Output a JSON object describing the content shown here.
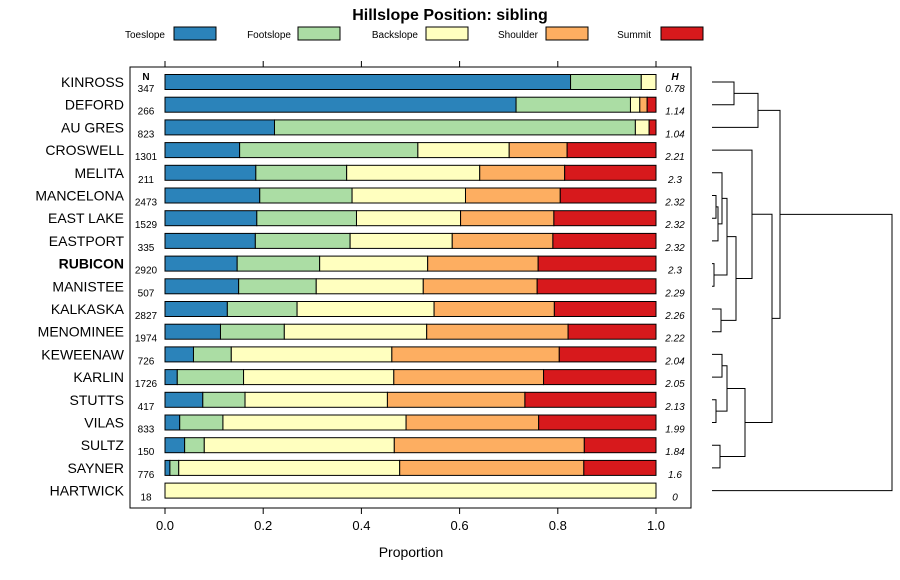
{
  "chart_data": {
    "type": "bar",
    "orientation": "horizontal",
    "stacked": true,
    "title": "Hillslope Position: sibling",
    "xlabel": "Proportion",
    "ylabel": "",
    "xlim": [
      0,
      1
    ],
    "x_ticks": [
      "0.0",
      "0.2",
      "0.4",
      "0.6",
      "0.8",
      "1.0"
    ],
    "n_header": "N",
    "h_header": "H",
    "highlight_category": "RUBICON",
    "legend": [
      {
        "name": "Toeslope",
        "color": "#2b83ba"
      },
      {
        "name": "Footslope",
        "color": "#abdda4"
      },
      {
        "name": "Backslope",
        "color": "#ffffbf"
      },
      {
        "name": "Shoulder",
        "color": "#fdae61"
      },
      {
        "name": "Summit",
        "color": "#d7191c"
      }
    ],
    "categories": [
      "KINROSS",
      "DEFORD",
      "AU GRES",
      "CROSWELL",
      "MELITA",
      "MANCELONA",
      "EAST LAKE",
      "EASTPORT",
      "RUBICON",
      "MANISTEE",
      "KALKASKA",
      "MENOMINEE",
      "KEWEENAW",
      "KARLIN",
      "STUTTS",
      "VILAS",
      "SULTZ",
      "SAYNER",
      "HARTWICK"
    ],
    "n": [
      "347",
      "266",
      "823",
      "1301",
      "211",
      "2473",
      "1529",
      "335",
      "2920",
      "507",
      "2827",
      "1974",
      "726",
      "1726",
      "417",
      "833",
      "150",
      "776",
      "18"
    ],
    "h": [
      "0.78",
      "1.14",
      "1.04",
      "2.21",
      "2.3",
      "2.32",
      "2.32",
      "2.32",
      "2.3",
      "2.29",
      "2.26",
      "2.22",
      "2.04",
      "2.05",
      "2.13",
      "1.99",
      "1.84",
      "1.6",
      "0"
    ],
    "series": [
      {
        "name": "Toeslope",
        "values": [
          0.826,
          0.715,
          0.223,
          0.152,
          0.185,
          0.193,
          0.187,
          0.184,
          0.147,
          0.15,
          0.127,
          0.113,
          0.058,
          0.025,
          0.077,
          0.03,
          0.04,
          0.01,
          0.0
        ]
      },
      {
        "name": "Footslope",
        "values": [
          0.144,
          0.233,
          0.735,
          0.363,
          0.185,
          0.188,
          0.203,
          0.193,
          0.168,
          0.158,
          0.142,
          0.13,
          0.077,
          0.135,
          0.086,
          0.088,
          0.04,
          0.018,
          0.0
        ]
      },
      {
        "name": "Backslope",
        "values": [
          0.03,
          0.019,
          0.028,
          0.186,
          0.271,
          0.231,
          0.212,
          0.208,
          0.22,
          0.218,
          0.279,
          0.29,
          0.327,
          0.306,
          0.29,
          0.373,
          0.387,
          0.45,
          1.0
        ]
      },
      {
        "name": "Shoulder",
        "values": [
          0.0,
          0.015,
          0.0,
          0.118,
          0.173,
          0.193,
          0.19,
          0.205,
          0.225,
          0.232,
          0.245,
          0.288,
          0.341,
          0.305,
          0.28,
          0.27,
          0.387,
          0.375,
          0.0
        ]
      },
      {
        "name": "Summit",
        "values": [
          0.0,
          0.018,
          0.014,
          0.181,
          0.186,
          0.195,
          0.208,
          0.21,
          0.24,
          0.242,
          0.207,
          0.179,
          0.197,
          0.229,
          0.267,
          0.239,
          0.146,
          0.147,
          0.0
        ]
      }
    ]
  }
}
